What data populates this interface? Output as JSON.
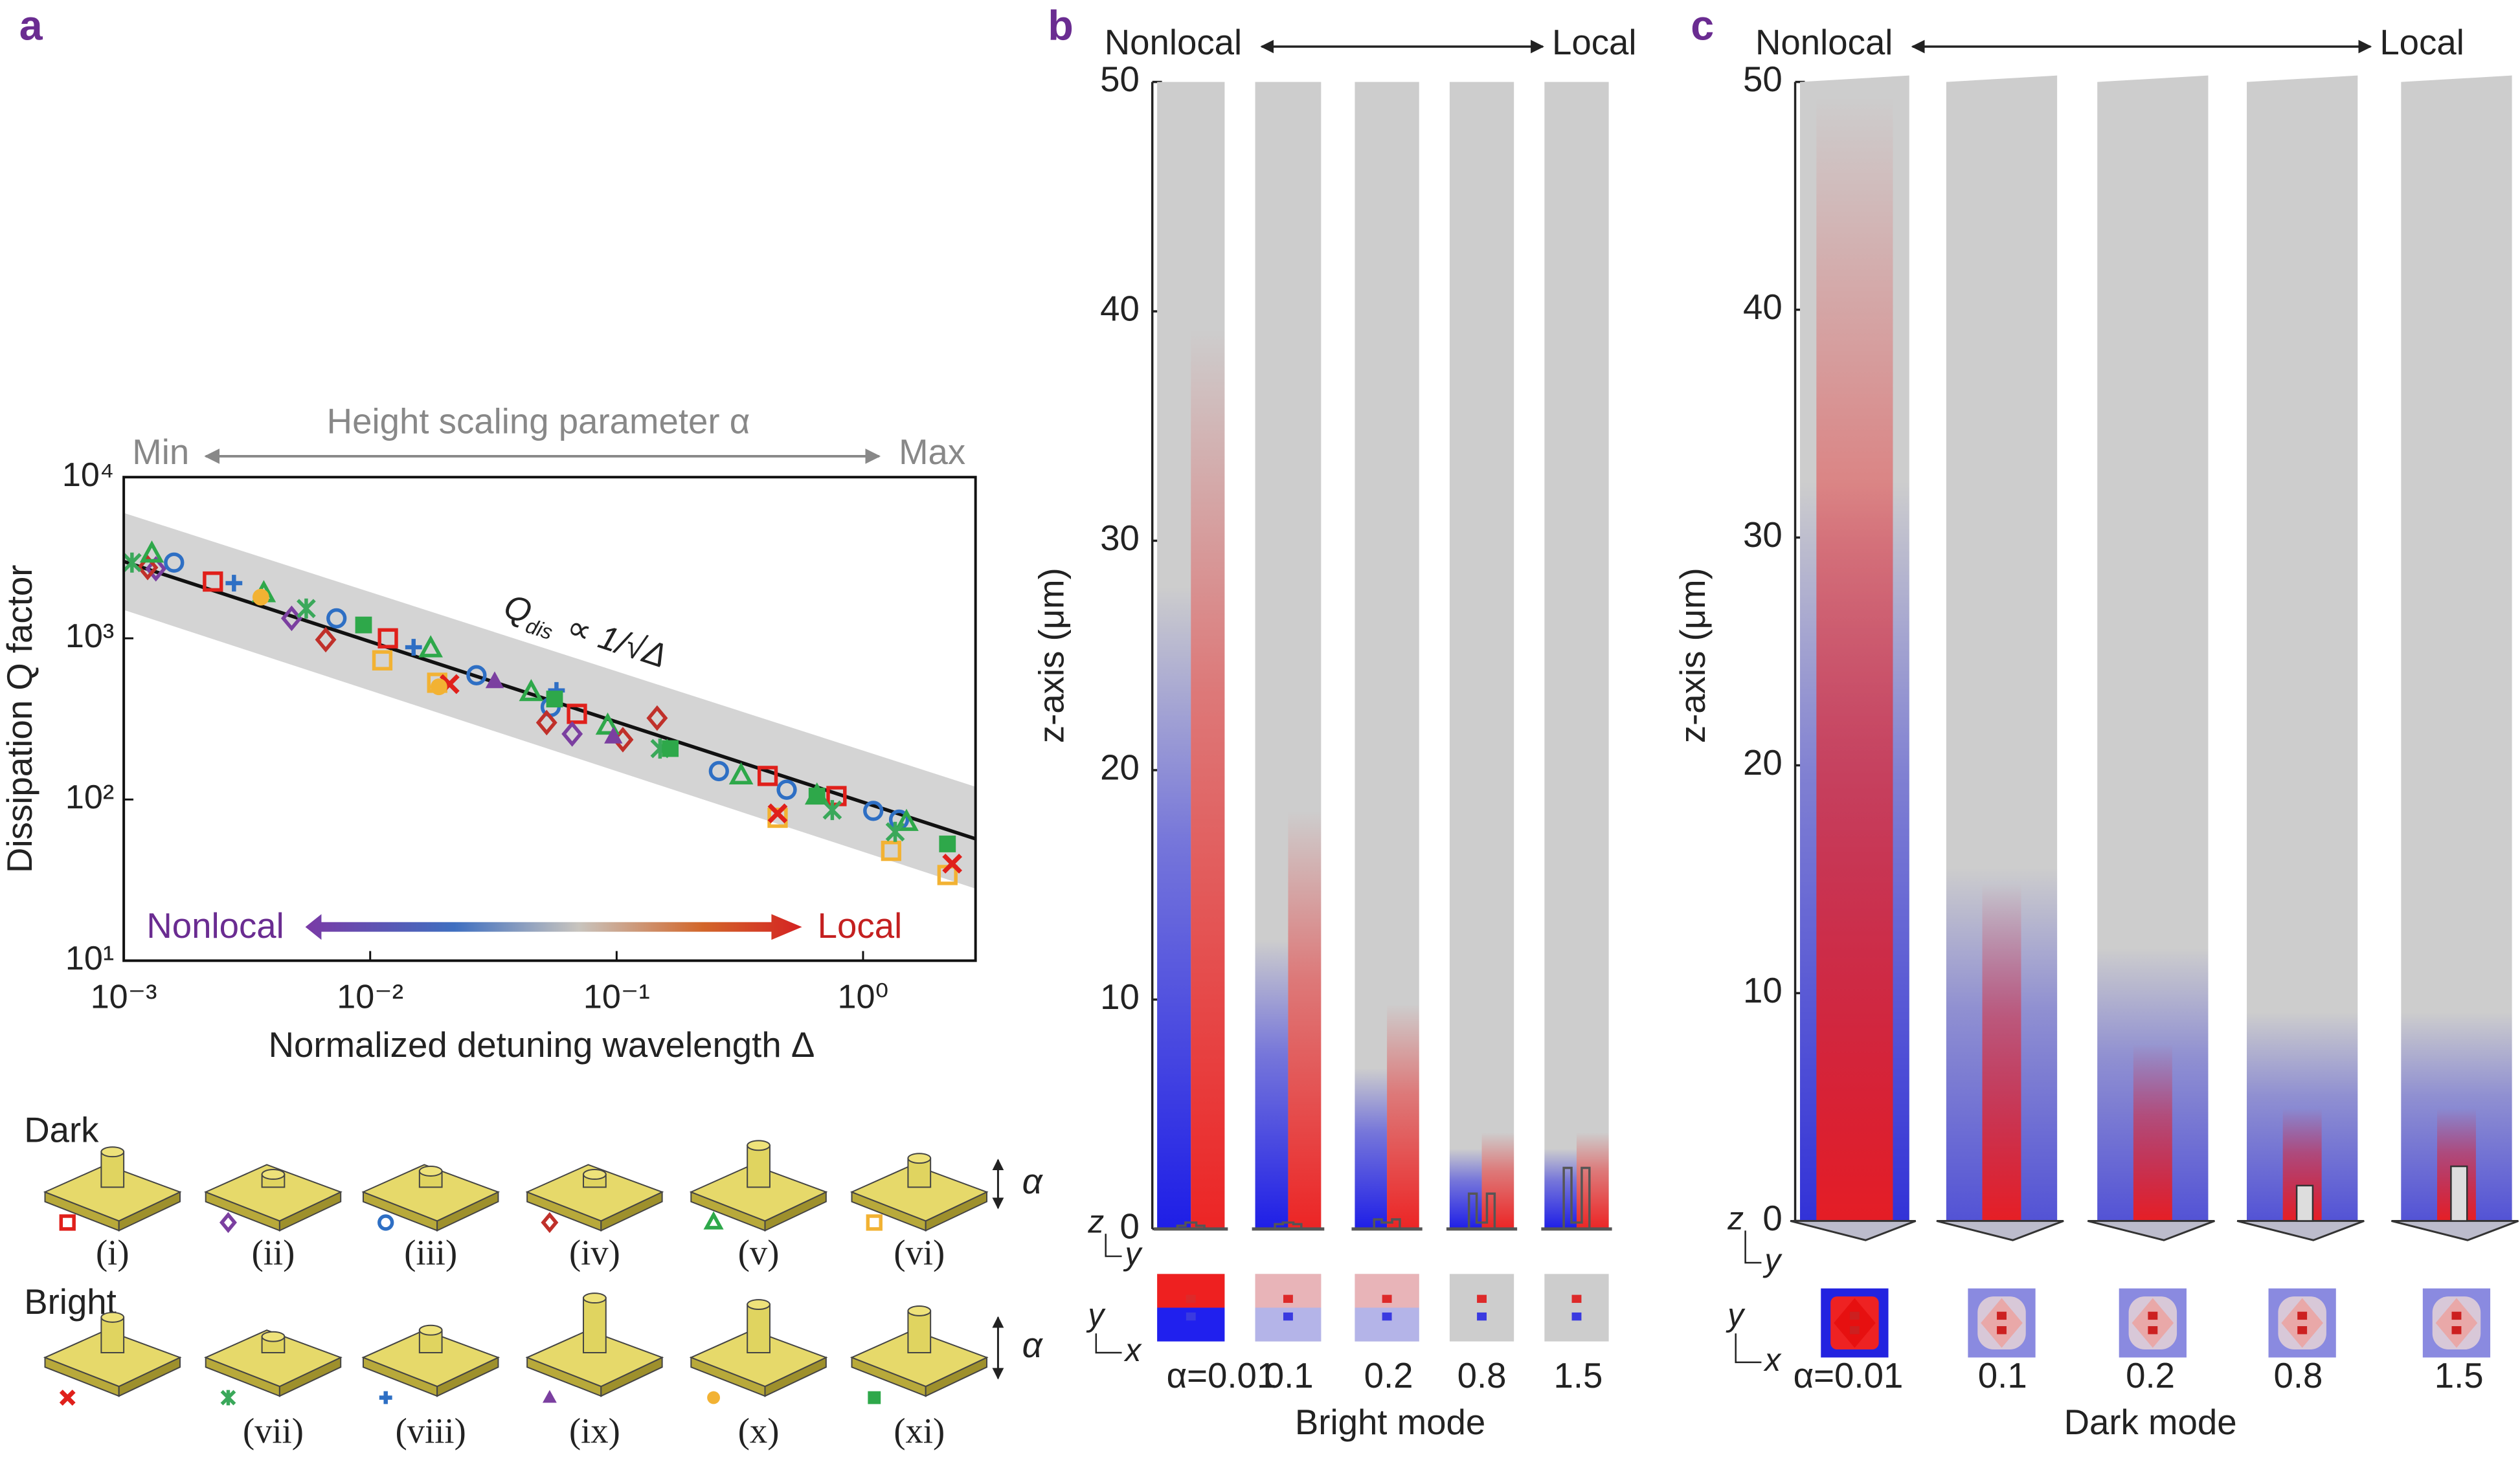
{
  "chart_data": [
    {
      "type": "scatter",
      "panel_label": "a",
      "xlabel": "Normalized detuning wavelength Δ",
      "ylabel": "Dissipation Q factor",
      "log_x": true,
      "log_y": true,
      "xlim": [
        0.001,
        2.86
      ],
      "ylim": [
        10,
        10000
      ],
      "xticks": [
        {
          "value": 0.001,
          "label": "10⁻³"
        },
        {
          "value": 0.01,
          "label": "10⁻²"
        },
        {
          "value": 0.1,
          "label": "10⁻¹"
        },
        {
          "value": 1,
          "label": "10⁰"
        }
      ],
      "yticks": [
        {
          "value": 10,
          "label": "10¹"
        },
        {
          "value": 100,
          "label": "10²"
        },
        {
          "value": 1000,
          "label": "10³"
        },
        {
          "value": 10000,
          "label": "10⁴"
        }
      ],
      "top_annotation": {
        "text": "Height scaling parameter α",
        "left": "Min",
        "right": "Max"
      },
      "bottom_annotation": {
        "left": "Nonlocal",
        "right": "Local"
      },
      "formula": {
        "main": "Q",
        "sub": "dis",
        "rest": "∝ 1/√Δ"
      },
      "fit": {
        "color": "#111111",
        "x": [
          0.001,
          2.86
        ],
        "values": [
          3000,
          57
        ]
      },
      "band": {
        "color": "#d4d4d4",
        "x": [
          0.001,
          2.86
        ],
        "upper": [
          6000,
          120
        ],
        "lower": [
          1500,
          28
        ]
      },
      "legend_rows": [
        "Dark",
        "Bright"
      ],
      "alpha_labels": [
        "α",
        "α"
      ],
      "series": [
        {
          "name": "(i)",
          "marker": "square-open",
          "color": "#e0201b",
          "x": [
            0.0023,
            0.0118,
            0.069,
            0.41,
            0.78
          ],
          "values": [
            2250,
            1000,
            340,
            140,
            105
          ]
        },
        {
          "name": "(ii)",
          "marker": "diamond-open",
          "color": "#7b3fa0",
          "x": [
            0.00135,
            0.0048,
            0.066
          ],
          "values": [
            2700,
            1330,
            255
          ]
        },
        {
          "name": "(iii)",
          "marker": "circle-open",
          "color": "#2e6fc4",
          "x": [
            0.0016,
            0.0073,
            0.027,
            0.054,
            0.26,
            0.49,
            1.1,
            1.4
          ],
          "values": [
            2950,
            1330,
            590,
            375,
            150,
            115,
            85,
            75
          ]
        },
        {
          "name": "(iv)",
          "marker": "diamond-open",
          "color": "#c0302a",
          "x": [
            0.00125,
            0.0066,
            0.052,
            0.106,
            0.146
          ],
          "values": [
            2750,
            980,
            300,
            235,
            320
          ]
        },
        {
          "name": "(v)",
          "marker": "triangle-open",
          "color": "#2ea84a",
          "x": [
            0.0013,
            0.0037,
            0.0176,
            0.045,
            0.092,
            0.32,
            0.65,
            1.5
          ],
          "values": [
            3330,
            1890,
            860,
            460,
            285,
            140,
            105,
            72
          ]
        },
        {
          "name": "(vi)",
          "marker": "square-open",
          "color": "#f2b233",
          "x": [
            0.0112,
            0.0187,
            0.45,
            1.3,
            2.2
          ],
          "values": [
            730,
            530,
            77,
            48,
            34
          ]
        },
        {
          "name": null,
          "marker": "x",
          "color": "#e0201b",
          "x": [
            0.021,
            0.45,
            2.3
          ],
          "values": [
            520,
            82,
            40
          ]
        },
        {
          "name": "(vii)",
          "marker": "star",
          "color": "#3aa85a",
          "x": [
            0.00108,
            0.0055,
            0.15,
            0.75,
            1.35
          ],
          "values": [
            2950,
            1530,
            207,
            86,
            63
          ]
        },
        {
          "name": "(viii)",
          "marker": "plus",
          "color": "#2e6fc4",
          "x": [
            0.0028,
            0.015,
            0.057
          ],
          "values": [
            2200,
            880,
            475
          ]
        },
        {
          "name": "(ix)",
          "marker": "triangle",
          "color": "#7b3fa0",
          "x": [
            0.032,
            0.097
          ],
          "values": [
            540,
            245
          ]
        },
        {
          "name": "(x)",
          "marker": "circle",
          "color": "#f2b233",
          "x": [
            0.0036,
            0.019
          ],
          "values": [
            1800,
            500
          ]
        },
        {
          "name": "(xi)",
          "marker": "square",
          "color": "#2ea84a",
          "x": [
            0.0094,
            0.056,
            0.165,
            0.65,
            2.2
          ],
          "values": [
            1210,
            420,
            207,
            105,
            53
          ]
        }
      ]
    },
    {
      "type": "fieldmap",
      "panel_label": "b",
      "mode": "bright",
      "ylabel": "z-axis (μm)",
      "xlabel": "Bright mode",
      "header": {
        "left": "Nonlocal",
        "right": "Local"
      },
      "axes_side": [
        "z",
        "y"
      ],
      "axes_top": [
        "y",
        "x"
      ],
      "ylim": [
        0,
        50
      ],
      "yticks": [
        0,
        10,
        20,
        30,
        40,
        50
      ],
      "categories": [
        "α=0.01",
        "0.1",
        "0.2",
        "0.8",
        "1.5"
      ]
    },
    {
      "type": "fieldmap",
      "panel_label": "c",
      "mode": "dark",
      "ylabel": "z-axis (μm)",
      "xlabel": "Dark mode",
      "header": {
        "left": "Nonlocal",
        "right": "Local"
      },
      "axes_side": [
        "z",
        "y"
      ],
      "axes_top": [
        "y",
        "x"
      ],
      "ylim": [
        0,
        50
      ],
      "yticks": [
        0,
        10,
        20,
        30,
        40,
        50
      ],
      "categories": [
        "α=0.01",
        "0.1",
        "0.2",
        "0.8",
        "1.5"
      ]
    }
  ]
}
